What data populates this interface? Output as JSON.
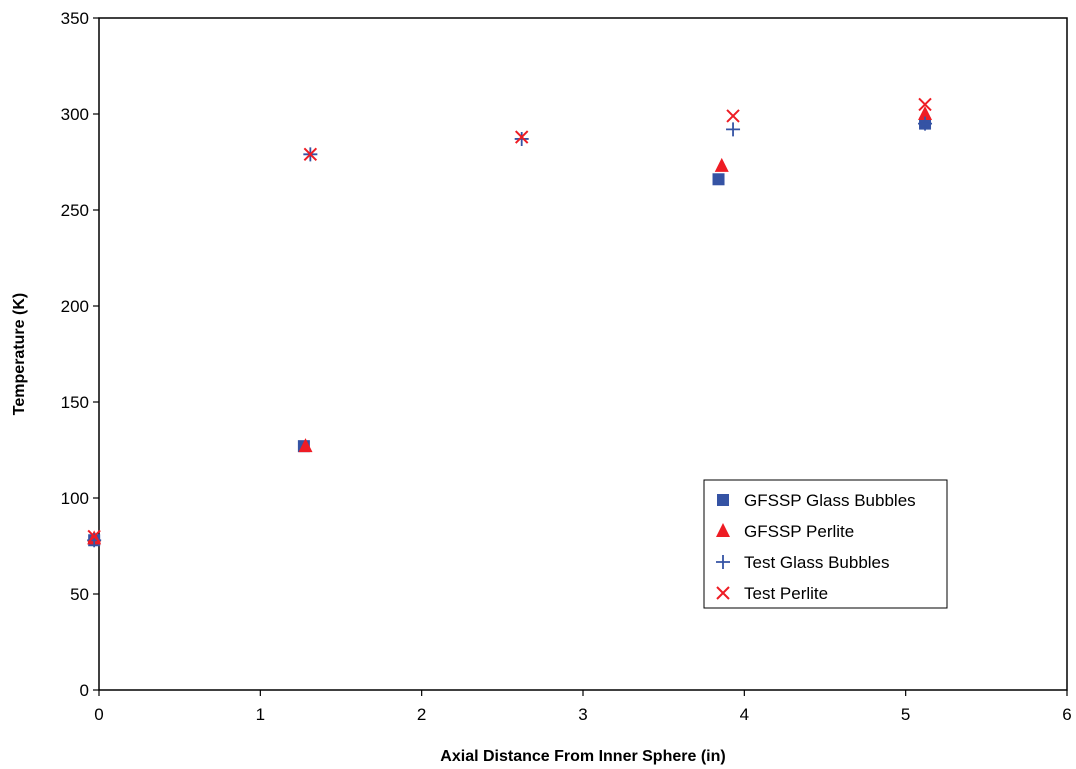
{
  "chart_data": {
    "type": "scatter",
    "title": "",
    "xlabel": "Axial Distance From Inner Sphere (in)",
    "ylabel": "Temperature (K)",
    "xlim": [
      0,
      6
    ],
    "ylim": [
      0,
      350
    ],
    "xticks": [
      "0",
      "1",
      "2",
      "3",
      "4",
      "5",
      "6"
    ],
    "yticks": [
      "0",
      "50",
      "100",
      "150",
      "200",
      "250",
      "300",
      "350"
    ],
    "grid": false,
    "legend_position": "lower-right",
    "series": [
      {
        "name": "GFSSP Glass Bubbles",
        "marker": "square",
        "color": "#3553a4",
        "points": [
          [
            -0.03,
            78
          ],
          [
            1.27,
            127
          ],
          [
            3.84,
            266
          ],
          [
            5.12,
            295
          ]
        ]
      },
      {
        "name": "GFSSP Perlite",
        "marker": "triangle",
        "color": "#ee1c24",
        "points": [
          [
            -0.03,
            79
          ],
          [
            1.28,
            127
          ],
          [
            3.86,
            273
          ],
          [
            5.12,
            300
          ]
        ]
      },
      {
        "name": "Test Glass Bubbles",
        "marker": "plus",
        "color": "#3553a4",
        "points": [
          [
            -0.03,
            78
          ],
          [
            1.31,
            279
          ],
          [
            2.62,
            287
          ],
          [
            3.93,
            292
          ],
          [
            5.12,
            295
          ]
        ]
      },
      {
        "name": "Test Perlite",
        "marker": "x",
        "color": "#ee1c24",
        "points": [
          [
            -0.03,
            80
          ],
          [
            1.31,
            279
          ],
          [
            2.62,
            288
          ],
          [
            3.93,
            299
          ],
          [
            5.12,
            305
          ]
        ]
      }
    ]
  }
}
